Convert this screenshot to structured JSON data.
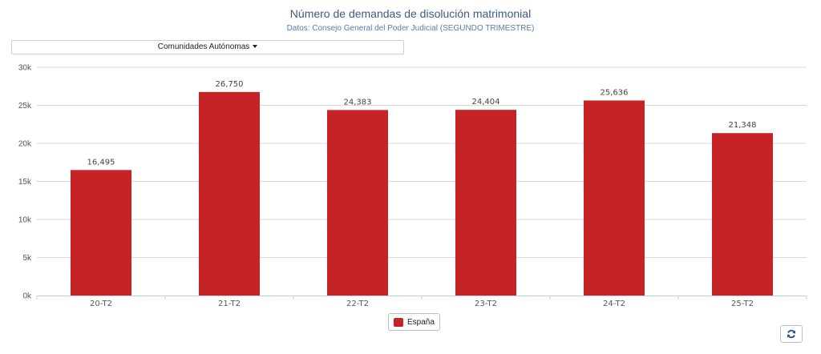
{
  "header": {
    "title": "Número de demandas de disolución matrimonial",
    "subtitle": "Datos: Consejo General del Poder Judicial (SEGUNDO TRIMESTRE)"
  },
  "filter": {
    "label": "Comunidades Autónomas"
  },
  "legend": {
    "label": "España"
  },
  "icons": {
    "refresh": "refresh-icon",
    "dropdown": "caret-down-icon"
  },
  "colors": {
    "bar": "#c62327",
    "grid": "#d8d8d8",
    "axis": "#c0d0e0",
    "text": "#555555"
  },
  "chart_data": {
    "type": "bar",
    "categories": [
      "20-T2",
      "21-T2",
      "22-T2",
      "23-T2",
      "24-T2",
      "25-T2"
    ],
    "series": [
      {
        "name": "España",
        "values": [
          16495,
          26750,
          24383,
          24404,
          25636,
          21348
        ]
      }
    ],
    "data_labels": [
      "16,495",
      "26,750",
      "24,383",
      "24,404",
      "25,636",
      "21,348"
    ],
    "ylim": [
      0,
      30000
    ],
    "yticks": [
      0,
      5000,
      10000,
      15000,
      20000,
      25000,
      30000
    ],
    "ytick_labels": [
      "0k",
      "5k",
      "10k",
      "15k",
      "20k",
      "25k",
      "30k"
    ],
    "grid": true,
    "legend_position": "bottom-center"
  }
}
